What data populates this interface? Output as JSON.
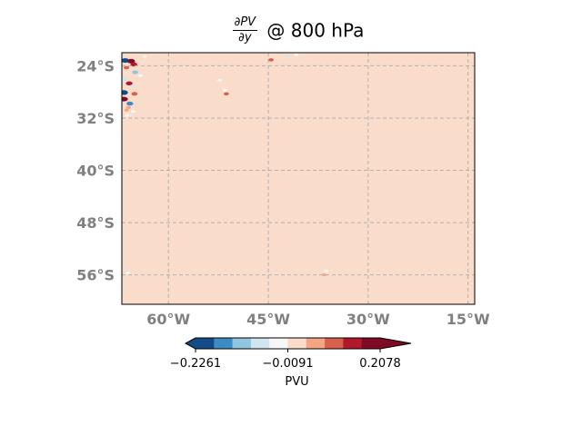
{
  "chart_data": {
    "type": "heatmap",
    "title": {
      "numerator": "∂PV",
      "denominator": "∂y",
      "suffix": "@ 800 hPa"
    },
    "lon_range": [
      -67,
      -14
    ],
    "lat_range": [
      -60.5,
      -22
    ],
    "x_ticks": [
      {
        "value": -60,
        "label": "60°W"
      },
      {
        "value": -45,
        "label": "45°W"
      },
      {
        "value": -30,
        "label": "30°W"
      },
      {
        "value": -15,
        "label": "15°W"
      }
    ],
    "y_ticks": [
      {
        "value": -24,
        "label": "24°S"
      },
      {
        "value": -32,
        "label": "32°S"
      },
      {
        "value": -40,
        "label": "40°S"
      },
      {
        "value": -48,
        "label": "48°S"
      },
      {
        "value": -56,
        "label": "56°S"
      }
    ],
    "grid": true,
    "background_value": 0.0,
    "colorbar": {
      "label": "PVU",
      "orientation": "horizontal",
      "extend": "both",
      "colors": [
        "#134b87",
        "#3c8bc3",
        "#92c5de",
        "#d1e5f0",
        "#f7f7f7",
        "#fadccb",
        "#f4a582",
        "#d6604d",
        "#b2182b",
        "#7f0a23"
      ],
      "tick_values": [
        -0.2261,
        -0.0091,
        0.2078
      ],
      "tick_labels": [
        "−0.2261",
        "−0.0091",
        "0.2078"
      ],
      "range": [
        -0.2261,
        0.2078
      ]
    },
    "features": [
      {
        "lon": -66.5,
        "lat": -23.2,
        "value": -0.2
      },
      {
        "lon": -65.6,
        "lat": -23.3,
        "value": 0.2
      },
      {
        "lon": -65.2,
        "lat": -23.8,
        "value": 0.16
      },
      {
        "lon": -66.3,
        "lat": -24.3,
        "value": 0.1
      },
      {
        "lon": -65.0,
        "lat": -25.0,
        "value": -0.12
      },
      {
        "lon": -66.6,
        "lat": -26.0,
        "value": -0.09
      },
      {
        "lon": -65.9,
        "lat": -26.7,
        "value": 0.15
      },
      {
        "lon": -65.4,
        "lat": -27.1,
        "value": -0.06
      },
      {
        "lon": -66.7,
        "lat": -28.1,
        "value": -0.22
      },
      {
        "lon": -65.1,
        "lat": -28.3,
        "value": 0.12
      },
      {
        "lon": -66.7,
        "lat": -29.1,
        "value": 0.21
      },
      {
        "lon": -65.8,
        "lat": -29.8,
        "value": -0.15
      },
      {
        "lon": -66.0,
        "lat": -30.4,
        "value": 0.07
      },
      {
        "lon": -65.3,
        "lat": -31.0,
        "value": -0.04
      },
      {
        "lon": -66.2,
        "lat": -31.6,
        "value": -0.05
      },
      {
        "lon": -66.3,
        "lat": -30.8,
        "value": 0.05
      },
      {
        "lon": -64.2,
        "lat": -25.5,
        "value": -0.04
      },
      {
        "lon": -63.5,
        "lat": -22.6,
        "value": -0.03
      },
      {
        "lon": -42.0,
        "lat": -22.5,
        "value": -0.06
      },
      {
        "lon": -40.8,
        "lat": -22.3,
        "value": -0.05
      },
      {
        "lon": -44.6,
        "lat": -23.1,
        "value": 0.09
      },
      {
        "lon": -52.3,
        "lat": -26.2,
        "value": -0.04
      },
      {
        "lon": -51.5,
        "lat": -27.7,
        "value": -0.05
      },
      {
        "lon": -51.3,
        "lat": -28.3,
        "value": 0.08
      },
      {
        "lon": -66.1,
        "lat": -55.7,
        "value": -0.05
      },
      {
        "lon": -36.3,
        "lat": -55.4,
        "value": -0.05
      },
      {
        "lon": -36.6,
        "lat": -56.0,
        "value": 0.05
      }
    ]
  }
}
